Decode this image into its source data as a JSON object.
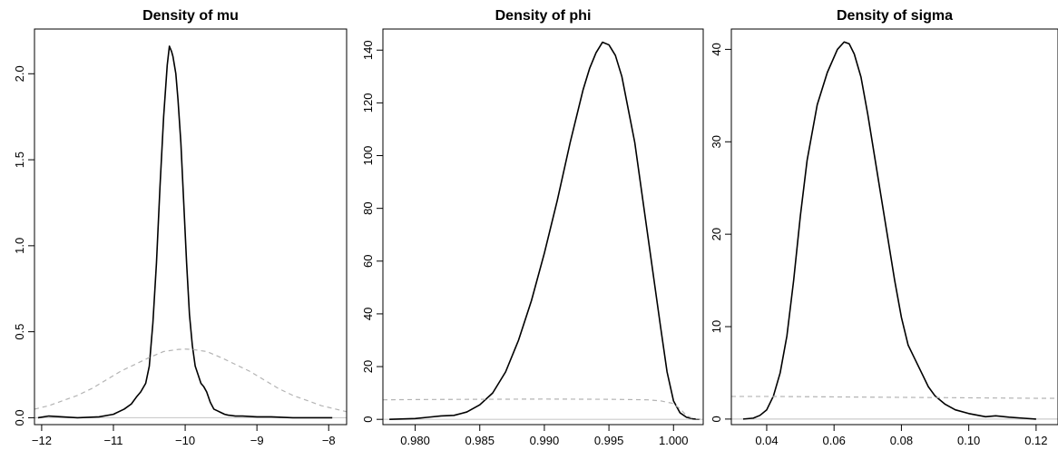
{
  "chart_data": [
    {
      "type": "line",
      "title": "Density of mu",
      "xlim": [
        -12.1,
        -7.75
      ],
      "ylim": [
        -0.04,
        2.26
      ],
      "x_ticks": [
        -12,
        -11,
        -10,
        -9,
        -8
      ],
      "x_tick_labels": [
        "−12",
        "−11",
        "−10",
        "−9",
        "−8"
      ],
      "y_ticks": [
        0.0,
        0.5,
        1.0,
        1.5,
        2.0
      ],
      "y_tick_labels": [
        "0.0",
        "0.5",
        "1.0",
        "1.5",
        "2.0"
      ],
      "colors": {
        "posterior": "#000000",
        "prior": "#b3b3b3",
        "baseline": "#cccccc"
      },
      "series": [
        {
          "style": "solid",
          "x": [
            -12.05,
            -11.9,
            -11.5,
            -11.2,
            -11.0,
            -10.85,
            -10.75,
            -10.68,
            -10.62,
            -10.55,
            -10.5,
            -10.45,
            -10.4,
            -10.35,
            -10.3,
            -10.25,
            -10.22,
            -10.19,
            -10.17,
            -10.15,
            -10.13,
            -10.1,
            -10.06,
            -10.02,
            -9.98,
            -9.94,
            -9.9,
            -9.86,
            -9.82,
            -9.78,
            -9.74,
            -9.7,
            -9.65,
            -9.6,
            -9.55,
            -9.5,
            -9.45,
            -9.4,
            -9.3,
            -9.2,
            -9.0,
            -8.8,
            -8.5,
            -8.2,
            -7.95
          ],
          "y": [
            0.0,
            0.01,
            0.0,
            0.005,
            0.02,
            0.05,
            0.08,
            0.12,
            0.15,
            0.2,
            0.3,
            0.55,
            0.9,
            1.35,
            1.75,
            2.05,
            2.16,
            2.13,
            2.1,
            2.05,
            2.0,
            1.85,
            1.6,
            1.25,
            0.9,
            0.6,
            0.42,
            0.3,
            0.25,
            0.2,
            0.18,
            0.15,
            0.09,
            0.05,
            0.04,
            0.03,
            0.02,
            0.015,
            0.01,
            0.01,
            0.005,
            0.005,
            0.0,
            0.0,
            0.0
          ]
        },
        {
          "style": "dashed",
          "x": [
            -12.1,
            -11.9,
            -11.7,
            -11.5,
            -11.3,
            -11.1,
            -10.9,
            -10.7,
            -10.5,
            -10.3,
            -10.1,
            -10.0,
            -9.9,
            -9.7,
            -9.5,
            -9.3,
            -9.1,
            -8.9,
            -8.7,
            -8.5,
            -8.3,
            -8.1,
            -7.9,
            -7.75
          ],
          "y": [
            0.05,
            0.07,
            0.1,
            0.13,
            0.17,
            0.22,
            0.27,
            0.31,
            0.35,
            0.385,
            0.397,
            0.399,
            0.397,
            0.385,
            0.35,
            0.31,
            0.27,
            0.22,
            0.17,
            0.13,
            0.1,
            0.07,
            0.05,
            0.035
          ]
        }
      ]
    },
    {
      "type": "line",
      "title": "Density of phi",
      "xlim": [
        0.9775,
        1.0023
      ],
      "ylim": [
        -2.0,
        148.0
      ],
      "x_ticks": [
        0.98,
        0.985,
        0.99,
        0.995,
        1.0
      ],
      "x_tick_labels": [
        "0.980",
        "0.985",
        "0.990",
        "0.995",
        "1.000"
      ],
      "y_ticks": [
        0,
        20,
        40,
        60,
        80,
        100,
        120,
        140
      ],
      "y_tick_labels": [
        "0",
        "20",
        "40",
        "60",
        "80",
        "100",
        "120",
        "140"
      ],
      "colors": {
        "posterior": "#000000",
        "prior": "#b3b3b3",
        "baseline": "#cccccc"
      },
      "series": [
        {
          "style": "solid",
          "x": [
            0.978,
            0.98,
            0.981,
            0.982,
            0.983,
            0.984,
            0.985,
            0.986,
            0.987,
            0.988,
            0.989,
            0.99,
            0.991,
            0.992,
            0.993,
            0.9935,
            0.994,
            0.9945,
            0.995,
            0.9955,
            0.996,
            0.997,
            0.998,
            0.999,
            0.9995,
            1.0,
            1.0005,
            1.001,
            1.0015,
            1.002
          ],
          "y": [
            0.0,
            0.3,
            0.8,
            1.3,
            1.5,
            2.8,
            5.5,
            10.0,
            18.0,
            30.0,
            45.0,
            63.0,
            83.0,
            105.0,
            125.0,
            133.0,
            139.0,
            143.0,
            142.0,
            138.0,
            130.0,
            105.0,
            70.0,
            35.0,
            18.0,
            7.0,
            2.5,
            0.8,
            0.2,
            0.0
          ]
        },
        {
          "style": "dashed",
          "x": [
            0.9775,
            0.98,
            0.985,
            0.99,
            0.995,
            0.998,
            0.999,
            1.0,
            1.0005,
            1.001,
            1.0015,
            1.0023
          ],
          "y": [
            7.4,
            7.5,
            7.6,
            7.7,
            7.6,
            7.4,
            7.0,
            6.0,
            4.0,
            1.5,
            0.3,
            0.0
          ]
        }
      ]
    },
    {
      "type": "line",
      "title": "Density of sigma",
      "xlim": [
        0.0295,
        0.1265
      ],
      "ylim": [
        -0.6,
        42.2
      ],
      "x_ticks": [
        0.04,
        0.06,
        0.08,
        0.1,
        0.12
      ],
      "x_tick_labels": [
        "0.04",
        "0.06",
        "0.08",
        "0.10",
        "0.12"
      ],
      "y_ticks": [
        0,
        10,
        20,
        30,
        40
      ],
      "y_tick_labels": [
        "0",
        "10",
        "20",
        "30",
        "40"
      ],
      "colors": {
        "posterior": "#000000",
        "prior": "#b3b3b3",
        "baseline": "#cccccc"
      },
      "series": [
        {
          "style": "solid",
          "x": [
            0.033,
            0.036,
            0.038,
            0.04,
            0.042,
            0.044,
            0.046,
            0.048,
            0.05,
            0.052,
            0.055,
            0.058,
            0.061,
            0.063,
            0.0645,
            0.066,
            0.068,
            0.07,
            0.072,
            0.074,
            0.076,
            0.078,
            0.08,
            0.082,
            0.084,
            0.086,
            0.088,
            0.09,
            0.093,
            0.096,
            0.1,
            0.105,
            0.108,
            0.112,
            0.116,
            0.12
          ],
          "y": [
            0.0,
            0.1,
            0.4,
            1.0,
            2.5,
            5.0,
            9.0,
            15.0,
            22.0,
            28.0,
            34.0,
            37.5,
            40.0,
            40.8,
            40.6,
            39.5,
            37.0,
            33.0,
            28.5,
            24.0,
            19.5,
            15.0,
            11.0,
            8.0,
            6.5,
            5.0,
            3.5,
            2.5,
            1.6,
            1.0,
            0.6,
            0.25,
            0.35,
            0.2,
            0.1,
            0.0
          ]
        },
        {
          "style": "dashed",
          "x": [
            0.0295,
            0.04,
            0.06,
            0.08,
            0.1,
            0.12,
            0.1265
          ],
          "y": [
            2.45,
            2.45,
            2.4,
            2.35,
            2.3,
            2.25,
            2.25
          ]
        }
      ]
    }
  ]
}
